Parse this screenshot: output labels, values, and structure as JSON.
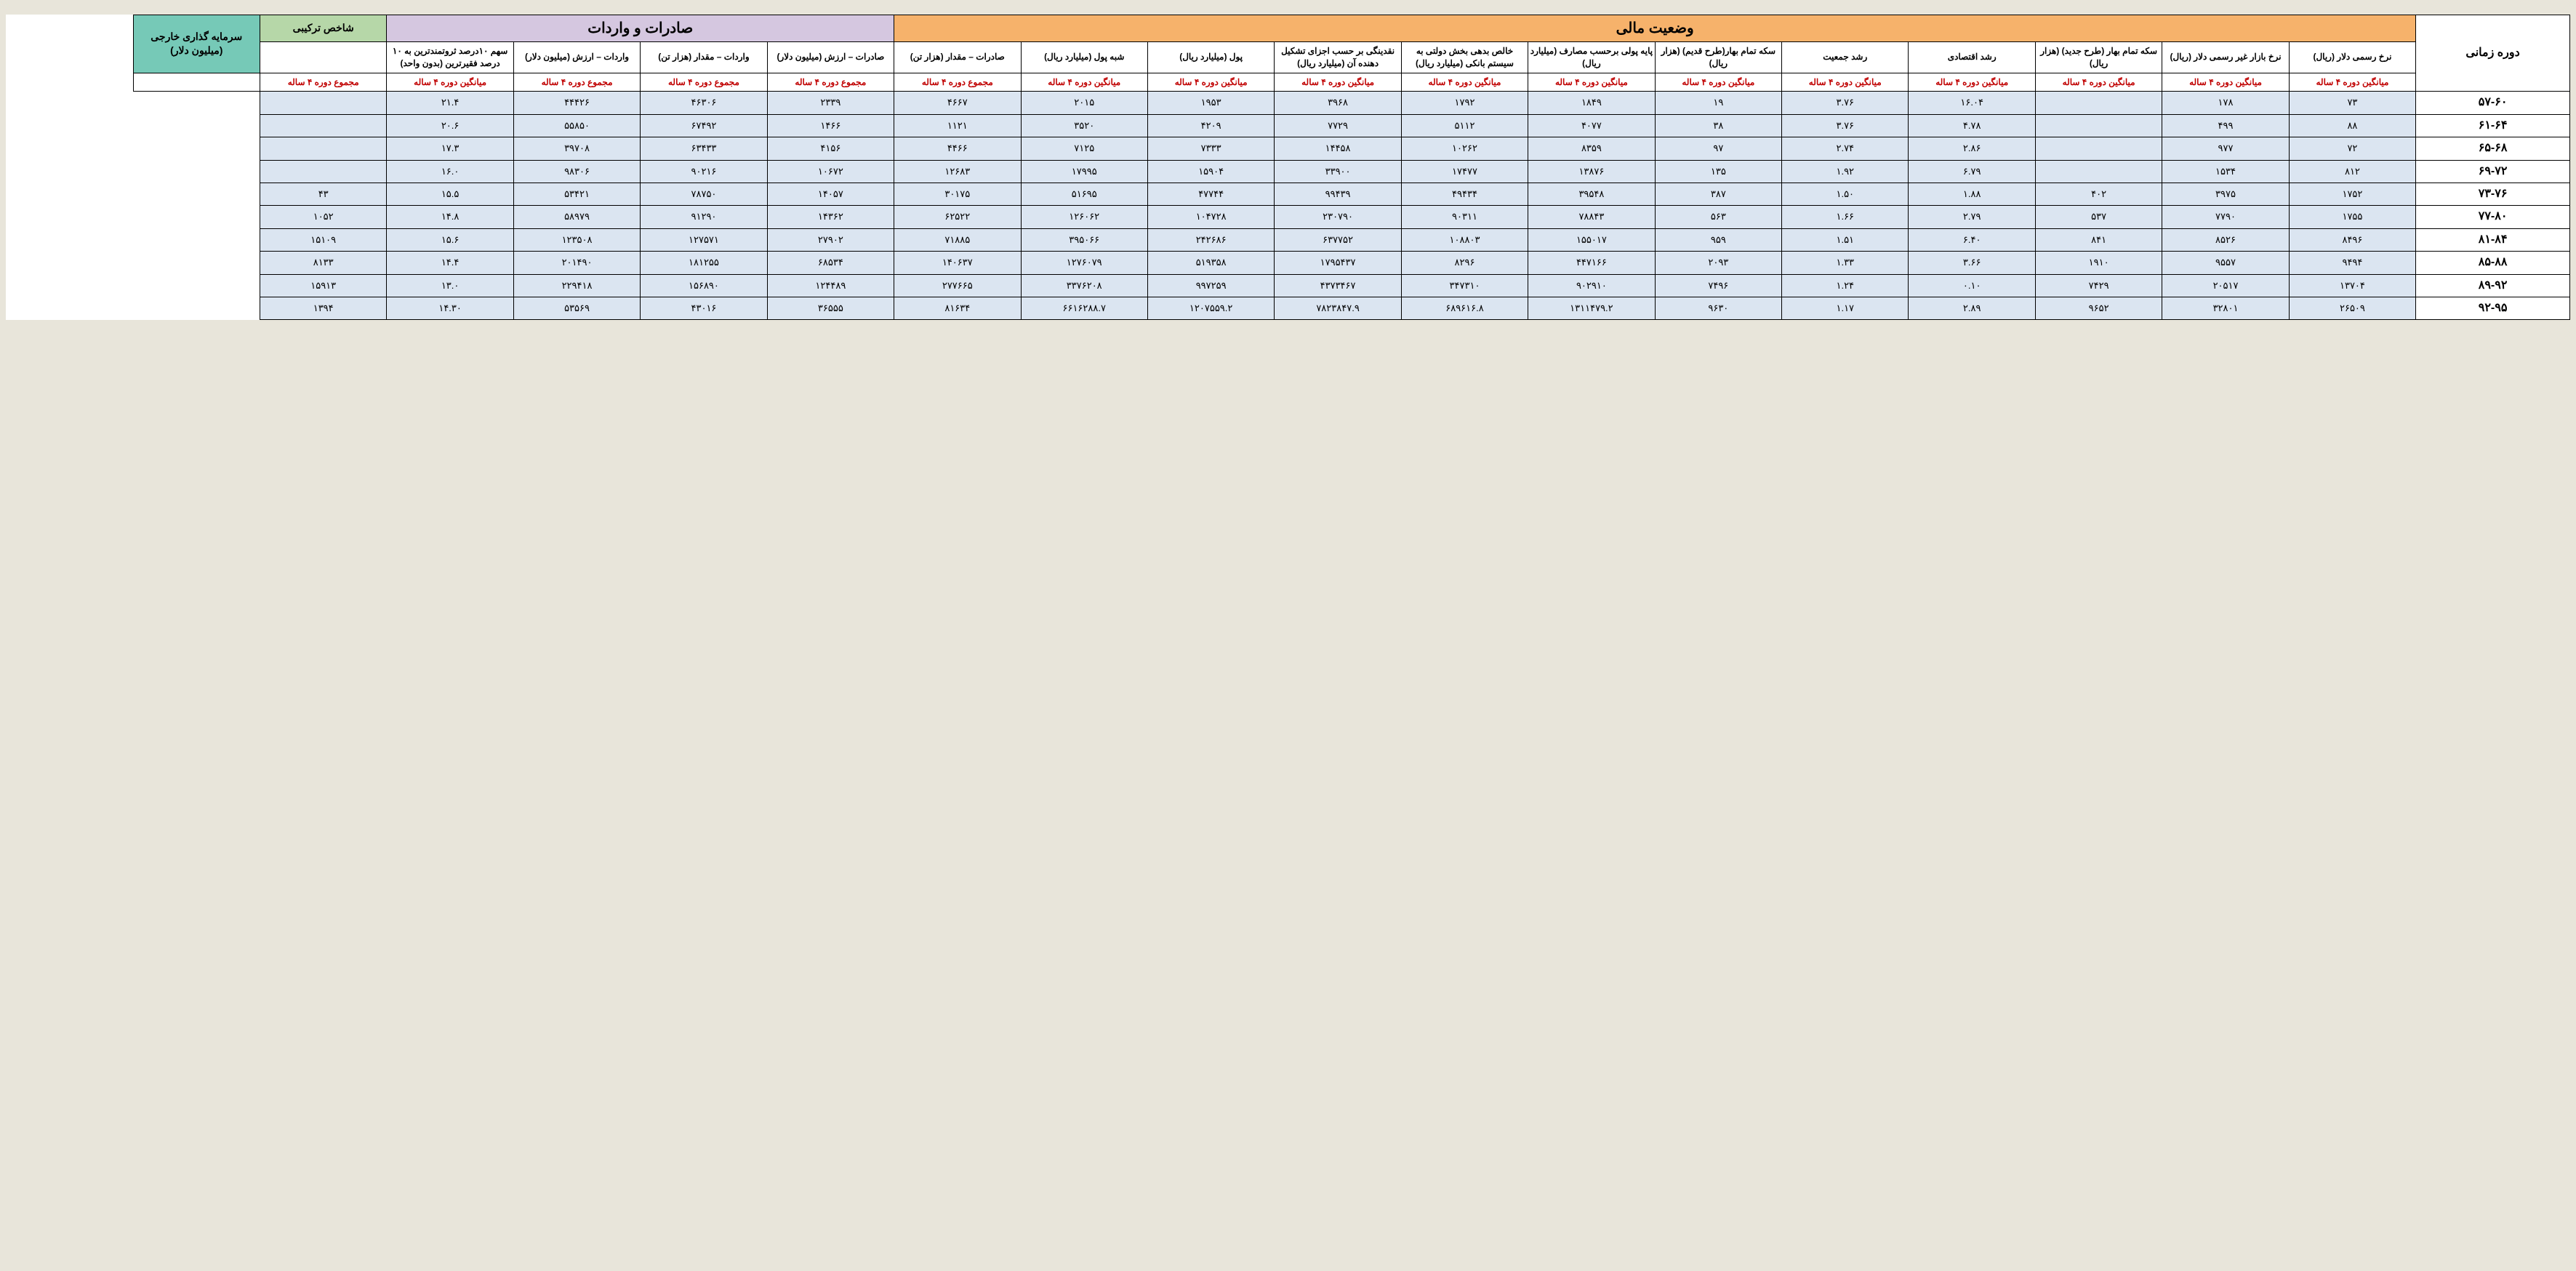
{
  "styling": {
    "page_bg": "#e8e5da",
    "cell_bg": "#dbe5f1",
    "border_color": "#000000",
    "stat_color": "#c00000",
    "group_colors": {
      "finance": "#f6b26b",
      "trade": "#d5c7e0",
      "index": "#b6d7a8",
      "fdi": "#76c9b7"
    },
    "font_family": "Tahoma",
    "header_group_fontsize_pt": 15,
    "sub_fontsize_pt": 9,
    "data_fontsize_pt": 10,
    "period_fontsize_pt": 12
  },
  "headers": {
    "period": "دوره زمانی",
    "groups": {
      "finance": "وضعیت مالی",
      "trade": "صادرات و واردات",
      "index": "شاخص ترکیبی",
      "fdi": "سرمایه گذاری خارجی (میلیون دلار)"
    },
    "sub": [
      "نرخ رسمی دلار (ریال)",
      "نرخ بازار غیر رسمی دلار (ریال)",
      "سکه تمام بهار (طرح جدید) (هزار ریال)",
      "رشد اقتصادی",
      "رشد جمعیت",
      "سکه تمام بهار(طرح قدیم) (هزار ریال)",
      "پایه پولی برحسب مصارف (میلیارد ریال)",
      "خالص بدهی بخش دولتی به سیستم بانکی (میلیارد ریال)",
      "نقدینگی بر حسب اجزای تشکیل دهنده آن (میلیارد ریال)",
      "پول (میلیارد ریال)",
      "شبه پول (میلیارد ریال)",
      "صادرات – مقدار (هزار تن)",
      "صادرات – ارزش (میلیون دلار)",
      "واردات – مقدار (هزار تن)",
      "واردات – ارزش (میلیون دلار)",
      "سهم ۱۰درصد ثروتمندترین به ۱۰ درصد فقیرترین (بدون واحد)"
    ],
    "stat": [
      "میانگین دوره ۴ ساله",
      "میانگین دوره ۴ ساله",
      "میانگین دوره ۴ ساله",
      "میانگین دوره ۴ ساله",
      "میانگین دوره ۴ ساله",
      "میانگین دوره ۴ ساله",
      "میانگین دوره ۴ ساله",
      "میانگین دوره ۴ ساله",
      "میانگین دوره ۴ ساله",
      "میانگین دوره ۴ ساله",
      "میانگین دوره ۴ ساله",
      "مجموع دوره ۴ ساله",
      "مجموع دوره ۴ ساله",
      "مجموع دوره ۴ ساله",
      "مجموع دوره ۴ ساله",
      "میانگین دوره ۴ ساله",
      "مجموع دوره ۴ ساله"
    ]
  },
  "rows": [
    {
      "period": "۵۷-۶۰",
      "cells": [
        "۷۳",
        "۱۷۸",
        "",
        "۱۶.۰۴",
        "۳.۷۶",
        "۱۹",
        "۱۸۴۹",
        "۱۷۹۲",
        "۳۹۶۸",
        "۱۹۵۳",
        "۲۰۱۵",
        "۴۶۶۷",
        "۲۳۳۹",
        "۴۶۳۰۶",
        "۴۴۴۲۶",
        "۲۱.۴",
        ""
      ]
    },
    {
      "period": "۶۱-۶۴",
      "cells": [
        "۸۸",
        "۴۹۹",
        "",
        "۴.۷۸",
        "۳.۷۶",
        "۳۸",
        "۴۰۷۷",
        "۵۱۱۲",
        "۷۷۲۹",
        "۴۲۰۹",
        "۳۵۲۰",
        "۱۱۲۱",
        "۱۴۶۶",
        "۶۷۴۹۲",
        "۵۵۸۵۰",
        "۲۰.۶",
        ""
      ]
    },
    {
      "period": "۶۵-۶۸",
      "cells": [
        "۷۲",
        "۹۷۷",
        "",
        "۲.۸۶",
        "۲.۷۴",
        "۹۷",
        "۸۳۵۹",
        "۱۰۲۶۲",
        "۱۴۴۵۸",
        "۷۳۳۳",
        "۷۱۲۵",
        "۴۴۶۶",
        "۴۱۵۶",
        "۶۳۴۳۳",
        "۳۹۷۰۸",
        "۱۷.۳",
        ""
      ]
    },
    {
      "period": "۶۹-۷۲",
      "cells": [
        "۸۱۲",
        "۱۵۳۴",
        "",
        "۶.۷۹",
        "۱.۹۲",
        "۱۳۵",
        "۱۳۸۷۶",
        "۱۷۴۷۷",
        "۳۳۹۰۰",
        "۱۵۹۰۴",
        "۱۷۹۹۵",
        "۱۲۶۸۳",
        "۱۰۶۷۲",
        "۹۰۲۱۶",
        "۹۸۳۰۶",
        "۱۶.۰",
        ""
      ]
    },
    {
      "period": "۷۳-۷۶",
      "cells": [
        "۱۷۵۲",
        "۳۹۷۵",
        "۴۰۲",
        "۱.۸۸",
        "۱.۵۰",
        "۳۸۷",
        "۳۹۵۴۸",
        "۴۹۴۳۴",
        "۹۹۴۳۹",
        "۴۷۷۴۴",
        "۵۱۶۹۵",
        "۳۰۱۷۵",
        "۱۴۰۵۷",
        "۷۸۷۵۰",
        "۵۳۴۲۱",
        "۱۵.۵",
        "۴۳"
      ]
    },
    {
      "period": "۷۷-۸۰",
      "cells": [
        "۱۷۵۵",
        "۷۷۹۰",
        "۵۳۷",
        "۲.۷۹",
        "۱.۶۶",
        "۵۶۳",
        "۷۸۸۴۳",
        "۹۰۳۱۱",
        "۲۳۰۷۹۰",
        "۱۰۴۷۲۸",
        "۱۲۶۰۶۲",
        "۶۲۵۲۲",
        "۱۴۳۶۲",
        "۹۱۲۹۰",
        "۵۸۹۷۹",
        "۱۴.۸",
        "۱۰۵۲"
      ]
    },
    {
      "period": "۸۱-۸۴",
      "cells": [
        "۸۴۹۶",
        "۸۵۲۶",
        "۸۴۱",
        "۶.۴۰",
        "۱.۵۱",
        "۹۵۹",
        "۱۵۵۰۱۷",
        "۱۰۸۸۰۳",
        "۶۳۷۷۵۲",
        "۲۴۲۶۸۶",
        "۳۹۵۰۶۶",
        "۷۱۸۸۵",
        "۲۷۹۰۲",
        "۱۲۷۵۷۱",
        "۱۲۳۵۰۸",
        "۱۵.۶",
        "۱۵۱۰۹"
      ]
    },
    {
      "period": "۸۵-۸۸",
      "cells": [
        "۹۴۹۴",
        "۹۵۵۷",
        "۱۹۱۰",
        "۳.۶۶",
        "۱.۳۳",
        "۲۰۹۳",
        "۴۴۷۱۶۶",
        "۸۲۹۶",
        "۱۷۹۵۴۳۷",
        "۵۱۹۳۵۸",
        "۱۲۷۶۰۷۹",
        "۱۴۰۶۳۷",
        "۶۸۵۳۴",
        "۱۸۱۲۵۵",
        "۲۰۱۴۹۰",
        "۱۴.۴",
        "۸۱۳۳"
      ]
    },
    {
      "period": "۸۹-۹۲",
      "cells": [
        "۱۳۷۰۴",
        "۲۰۵۱۷",
        "۷۴۲۹",
        "۰.۱۰",
        "۱.۲۴",
        "۷۴۹۶",
        "۹۰۲۹۱۰",
        "۳۴۷۳۱۰",
        "۴۳۷۳۴۶۷",
        "۹۹۷۲۵۹",
        "۳۳۷۶۲۰۸",
        "۲۷۷۶۶۵",
        "۱۲۴۴۸۹",
        "۱۵۶۸۹۰",
        "۲۲۹۴۱۸",
        "۱۳.۰",
        "۱۵۹۱۳"
      ]
    },
    {
      "period": "۹۲-۹۵",
      "cells": [
        "۲۶۵۰۹",
        "۳۲۸۰۱",
        "۹۶۵۲",
        "۲.۸۹",
        "۱.۱۷",
        "۹۶۳۰",
        "۱۳۱۱۴۷۹.۲",
        "۶۸۹۶۱۶.۸",
        "۷۸۲۳۸۴۷.۹",
        "۱۲۰۷۵۵۹.۲",
        "۶۶۱۶۲۸۸.۷",
        "۸۱۶۳۴",
        "۳۶۵۵۵",
        "۴۳۰۱۶",
        "۵۳۵۶۹",
        "۱۴.۳۰",
        "۱۳۹۴"
      ]
    }
  ]
}
